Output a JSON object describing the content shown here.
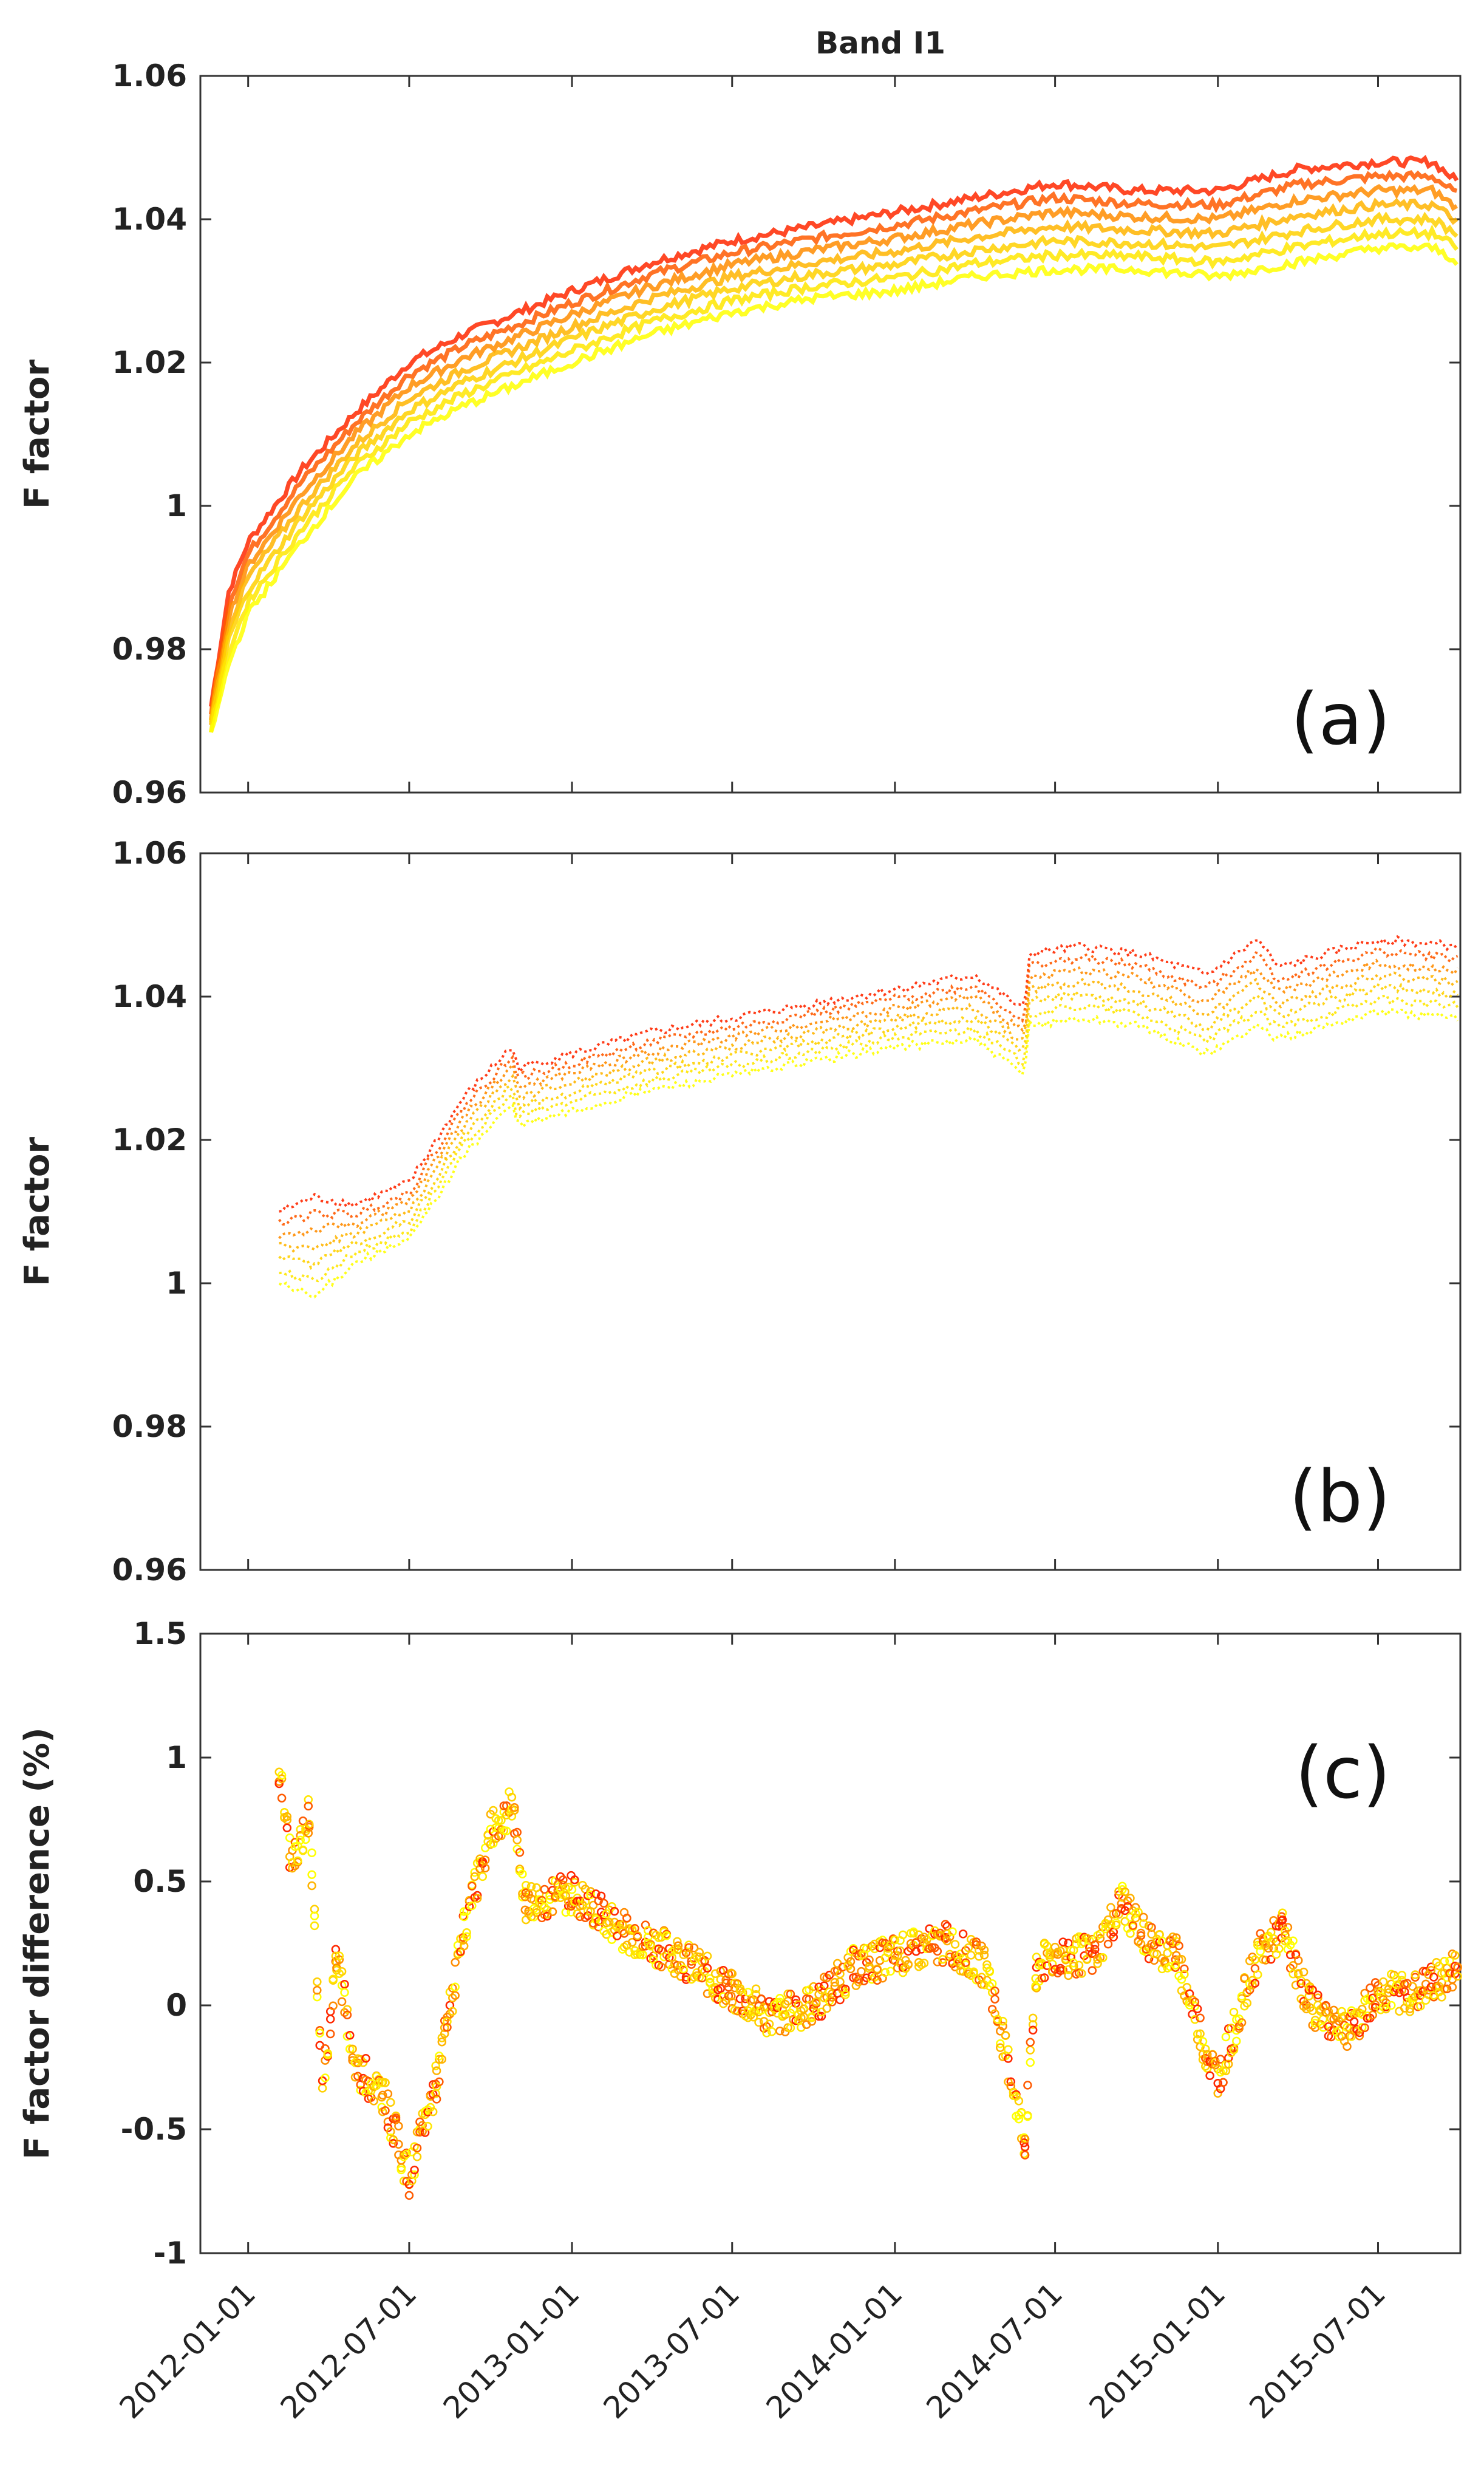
{
  "figure_title": "Band I1",
  "chart_data": [
    {
      "panel": "(a)",
      "type": "line",
      "ylabel": "F factor",
      "ylim": [
        0.96,
        1.06
      ],
      "yticks": [
        "0.96",
        "0.98",
        "1",
        "1.02",
        "1.04",
        "1.06"
      ],
      "x_ticks": [
        "2012-01-01",
        "2012-07-01",
        "2013-01-01",
        "2013-07-01",
        "2014-01-01",
        "2014-07-01",
        "2015-01-01",
        "2015-07-01"
      ],
      "xlim": [
        "2011-11-08",
        "2015-10-02"
      ],
      "color_scale": [
        "#ff4500",
        "#ff8c00",
        "#ffc000",
        "#ffff00"
      ],
      "series": [
        {
          "name": "upper (orange-red)",
          "x": [
            "2011-11-20",
            "2011-12-10",
            "2012-01-01",
            "2012-03-01",
            "2012-05-01",
            "2012-07-01",
            "2012-09-01",
            "2012-11-01",
            "2013-01-01",
            "2013-04-01",
            "2013-07-01",
            "2013-10-01",
            "2014-01-01",
            "2014-04-01",
            "2014-07-01",
            "2014-10-01",
            "2015-01-01",
            "2015-04-01",
            "2015-07-01",
            "2015-09-01",
            "2015-10-01"
          ],
          "y": [
            0.972,
            0.988,
            0.995,
            1.005,
            1.013,
            1.02,
            1.024,
            1.027,
            1.03,
            1.034,
            1.037,
            1.039,
            1.041,
            1.043,
            1.045,
            1.044,
            1.044,
            1.047,
            1.048,
            1.048,
            1.045
          ]
        },
        {
          "name": "lower (yellow)",
          "x": [
            "2011-11-20",
            "2011-12-10",
            "2012-01-01",
            "2012-03-01",
            "2012-05-01",
            "2012-07-01",
            "2012-09-01",
            "2012-11-01",
            "2013-01-01",
            "2013-04-01",
            "2013-07-01",
            "2013-10-01",
            "2014-01-01",
            "2014-04-01",
            "2014-07-01",
            "2014-10-01",
            "2015-01-01",
            "2015-04-01",
            "2015-07-01",
            "2015-09-01",
            "2015-10-01"
          ],
          "y": [
            0.968,
            0.978,
            0.985,
            0.995,
            1.004,
            1.01,
            1.014,
            1.017,
            1.02,
            1.024,
            1.027,
            1.029,
            1.03,
            1.032,
            1.033,
            1.033,
            1.032,
            1.034,
            1.036,
            1.036,
            1.034
          ]
        }
      ]
    },
    {
      "panel": "(b)",
      "type": "scatter",
      "ylabel": "F factor",
      "ylim": [
        0.96,
        1.06
      ],
      "yticks": [
        "0.96",
        "0.98",
        "1",
        "1.02",
        "1.04",
        "1.06"
      ],
      "x_ticks": [
        "2012-01-01",
        "2012-07-01",
        "2013-01-01",
        "2013-07-01",
        "2014-01-01",
        "2014-07-01",
        "2015-01-01",
        "2015-07-01"
      ],
      "xlim": [
        "2011-11-08",
        "2015-10-02"
      ],
      "series": [
        {
          "name": "upper (orange-red)",
          "x": [
            "2012-02-05",
            "2012-03-15",
            "2012-05-01",
            "2012-07-01",
            "2012-09-01",
            "2012-10-25",
            "2012-11-01",
            "2013-01-01",
            "2013-04-01",
            "2013-07-01",
            "2013-10-01",
            "2014-01-01",
            "2014-04-01",
            "2014-05-28",
            "2014-06-01",
            "2014-08-01",
            "2014-10-01",
            "2014-12-20",
            "2015-02-15",
            "2015-03-10",
            "2015-07-01",
            "2015-09-30"
          ],
          "y": [
            1.01,
            1.012,
            1.011,
            1.014,
            1.026,
            1.033,
            1.03,
            1.032,
            1.035,
            1.037,
            1.039,
            1.041,
            1.043,
            1.038,
            1.046,
            1.047,
            1.046,
            1.043,
            1.048,
            1.044,
            1.048,
            1.047
          ]
        },
        {
          "name": "lower (yellow)",
          "x": [
            "2012-02-05",
            "2012-03-15",
            "2012-05-01",
            "2012-07-01",
            "2012-09-01",
            "2012-10-25",
            "2012-11-01",
            "2013-01-01",
            "2013-04-01",
            "2013-07-01",
            "2013-10-01",
            "2014-01-01",
            "2014-04-01",
            "2014-05-28",
            "2014-06-01",
            "2014-08-01",
            "2014-10-01",
            "2014-12-20",
            "2015-02-15",
            "2015-03-10",
            "2015-07-01",
            "2015-09-30"
          ],
          "y": [
            1.0,
            0.998,
            1.003,
            1.006,
            1.018,
            1.025,
            1.022,
            1.024,
            1.027,
            1.029,
            1.031,
            1.033,
            1.034,
            1.029,
            1.036,
            1.037,
            1.036,
            1.032,
            1.036,
            1.034,
            1.038,
            1.037
          ]
        }
      ]
    },
    {
      "panel": "(c)",
      "type": "scatter",
      "ylabel": "F factor difference (%)",
      "ylim": [
        -1,
        1.5
      ],
      "yticks": [
        "-1",
        "-0.5",
        "0",
        "0.5",
        "1",
        "1.5"
      ],
      "x_ticks": [
        "2012-01-01",
        "2012-07-01",
        "2013-01-01",
        "2013-07-01",
        "2014-01-01",
        "2014-07-01",
        "2015-01-01",
        "2015-07-01"
      ],
      "xlim": [
        "2011-11-08",
        "2015-10-02"
      ],
      "series": [
        {
          "name": "difference",
          "x": [
            "2012-02-05",
            "2012-02-20",
            "2012-03-10",
            "2012-03-25",
            "2012-04-10",
            "2012-05-01",
            "2012-06-01",
            "2012-07-01",
            "2012-08-01",
            "2012-09-01",
            "2012-10-01",
            "2012-10-25",
            "2012-11-10",
            "2013-01-01",
            "2013-03-01",
            "2013-05-01",
            "2013-07-01",
            "2013-08-15",
            "2013-10-01",
            "2013-11-15",
            "2014-01-01",
            "2014-03-01",
            "2014-04-15",
            "2014-05-28",
            "2014-06-10",
            "2014-07-01",
            "2014-08-15",
            "2014-09-15",
            "2014-10-15",
            "2014-11-15",
            "2014-12-20",
            "2015-01-01",
            "2015-02-15",
            "2015-03-15",
            "2015-04-15",
            "2015-06-01",
            "2015-07-01",
            "2015-08-15",
            "2015-09-30"
          ],
          "y": [
            0.95,
            0.55,
            0.78,
            -0.35,
            0.2,
            -0.25,
            -0.35,
            -0.7,
            -0.3,
            0.3,
            0.7,
            0.8,
            0.42,
            0.45,
            0.3,
            0.2,
            0.05,
            -0.05,
            0.0,
            0.15,
            0.2,
            0.25,
            0.15,
            -0.55,
            0.15,
            0.2,
            0.2,
            0.42,
            0.25,
            0.2,
            -0.2,
            -0.3,
            0.2,
            0.3,
            0.0,
            -0.1,
            0.05,
            0.05,
            0.15
          ]
        }
      ]
    }
  ]
}
